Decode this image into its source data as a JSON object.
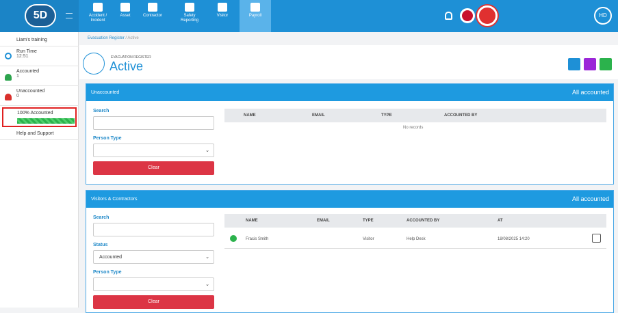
{
  "nav": {
    "logo": "5D",
    "items": [
      "Accident / Incident",
      "Asset",
      "Contractor",
      "Safety Reporting",
      "Visitor",
      "Payroll"
    ],
    "user": "HD"
  },
  "sidebar": {
    "workspace": "Liam's training",
    "run_time": {
      "label": "Run Time",
      "value": "12:51"
    },
    "accounted": {
      "label": "Accounted",
      "value": 1
    },
    "unaccounted": {
      "label": "Unaccounted",
      "value": 0
    },
    "progress": {
      "label": "100% Accounted",
      "value": 100
    },
    "help": "Help and Support"
  },
  "breadcrumb": [
    "Evacuation Register",
    "Active"
  ],
  "header": {
    "subtitle": "EVACUATION REGISTER",
    "title": "Active"
  },
  "panels": [
    {
      "title": "Unaccounted",
      "status": "All accounted",
      "filters": [
        {
          "label": "Search"
        },
        {
          "label": "Person Type"
        }
      ],
      "button": "Clear",
      "table": {
        "columns": [
          "NAME",
          "EMAIL",
          "TYPE",
          "ACCOUNTED BY"
        ],
        "empty": "No records"
      }
    },
    {
      "title": "Visitors & Contractors",
      "status": "All accounted",
      "filters": [
        {
          "label": "Search"
        },
        {
          "label": "Status",
          "value": "Accounted"
        },
        {
          "label": "Person Type"
        }
      ],
      "button": "Clear",
      "table": {
        "columns": [
          "NAME",
          "EMAIL",
          "TYPE",
          "ACCOUNTED BY",
          "AT"
        ],
        "rows": [
          {
            "name": "Fracis Smith",
            "type": "Visitor",
            "accounted_by": "Help Desk",
            "at": "18/08/2025 14:20"
          }
        ]
      }
    }
  ]
}
